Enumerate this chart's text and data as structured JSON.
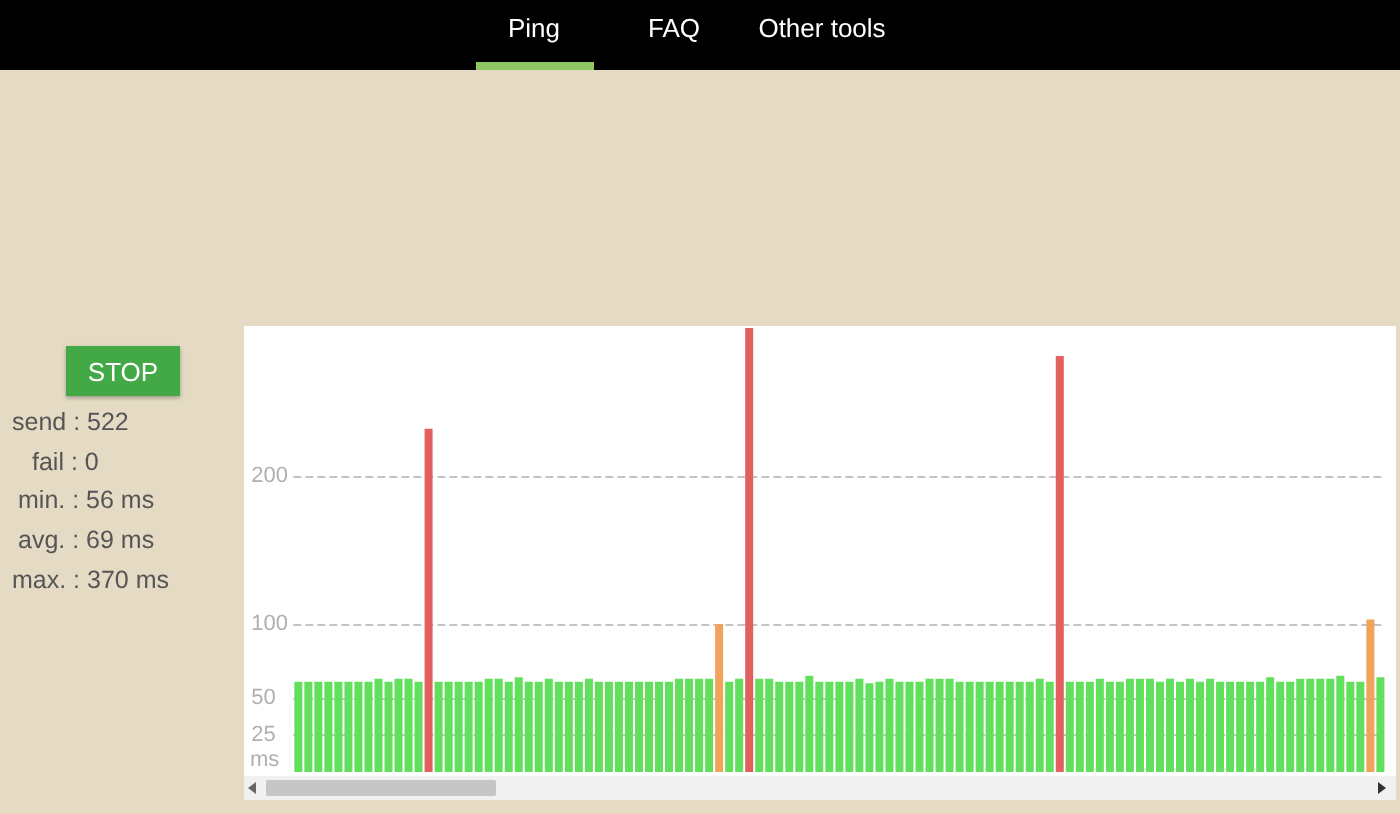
{
  "chart_data": {
    "type": "bar",
    "categories": [
      null,
      null,
      null,
      null,
      null,
      null,
      null,
      null,
      null,
      null,
      null,
      null,
      null,
      null,
      null,
      null,
      null,
      null,
      null,
      null,
      null,
      null,
      null,
      null,
      null,
      null,
      null,
      null,
      null,
      null,
      null,
      null,
      null,
      null,
      null,
      null,
      null,
      null,
      null,
      null,
      null,
      null,
      null,
      null,
      null,
      null,
      null,
      null,
      null,
      null,
      null,
      null,
      null,
      null,
      null,
      null,
      null,
      null,
      null,
      null,
      null,
      null,
      null,
      null,
      null,
      null,
      null,
      null,
      null,
      null,
      null,
      null,
      null,
      null,
      null,
      null,
      null,
      null,
      null,
      null,
      null,
      null,
      null,
      null,
      null,
      null,
      null,
      null,
      null,
      null,
      null,
      null,
      null,
      null,
      null,
      null,
      null,
      null,
      null,
      null,
      null,
      null,
      null,
      null,
      null,
      null,
      null,
      null,
      null
    ],
    "values": [
      61,
      61,
      61,
      61,
      61,
      61,
      61,
      61,
      63,
      61,
      63,
      63,
      61,
      232,
      61,
      61,
      61,
      61,
      61,
      63,
      63,
      61,
      64,
      61,
      61,
      63,
      61,
      61,
      61,
      63,
      61,
      61,
      61,
      61,
      61,
      61,
      61,
      61,
      63,
      63,
      63,
      63,
      100,
      61,
      63,
      300,
      63,
      63,
      61,
      61,
      61,
      65,
      61,
      61,
      61,
      61,
      63,
      60,
      61,
      63,
      61,
      61,
      61,
      63,
      63,
      63,
      61,
      61,
      61,
      61,
      61,
      61,
      61,
      61,
      63,
      61,
      281,
      61,
      61,
      61,
      63,
      61,
      61,
      63,
      63,
      63,
      61,
      63,
      61,
      63,
      61,
      63,
      61,
      61,
      61,
      61,
      61,
      64,
      61,
      61,
      63,
      63,
      63,
      63,
      65,
      61,
      61,
      103,
      64
    ],
    "colors": [
      "#62df5c",
      "#62df5c",
      "#62df5c",
      "#62df5c",
      "#62df5c",
      "#62df5c",
      "#62df5c",
      "#62df5c",
      "#62df5c",
      "#62df5c",
      "#62df5c",
      "#62df5c",
      "#62df5c",
      "#e3605f",
      "#62df5c",
      "#62df5c",
      "#62df5c",
      "#62df5c",
      "#62df5c",
      "#62df5c",
      "#62df5c",
      "#62df5c",
      "#62df5c",
      "#62df5c",
      "#62df5c",
      "#62df5c",
      "#62df5c",
      "#62df5c",
      "#62df5c",
      "#62df5c",
      "#62df5c",
      "#62df5c",
      "#62df5c",
      "#62df5c",
      "#62df5c",
      "#62df5c",
      "#62df5c",
      "#62df5c",
      "#62df5c",
      "#62df5c",
      "#62df5c",
      "#62df5c",
      "#efa35b",
      "#62df5c",
      "#62df5c",
      "#e3605f",
      "#62df5c",
      "#62df5c",
      "#62df5c",
      "#62df5c",
      "#62df5c",
      "#62df5c",
      "#62df5c",
      "#62df5c",
      "#62df5c",
      "#62df5c",
      "#62df5c",
      "#62df5c",
      "#62df5c",
      "#62df5c",
      "#62df5c",
      "#62df5c",
      "#62df5c",
      "#62df5c",
      "#62df5c",
      "#62df5c",
      "#62df5c",
      "#62df5c",
      "#62df5c",
      "#62df5c",
      "#62df5c",
      "#62df5c",
      "#62df5c",
      "#62df5c",
      "#62df5c",
      "#62df5c",
      "#e3605f",
      "#62df5c",
      "#62df5c",
      "#62df5c",
      "#62df5c",
      "#62df5c",
      "#62df5c",
      "#62df5c",
      "#62df5c",
      "#62df5c",
      "#62df5c",
      "#62df5c",
      "#62df5c",
      "#62df5c",
      "#62df5c",
      "#62df5c",
      "#62df5c",
      "#62df5c",
      "#62df5c",
      "#62df5c",
      "#62df5c",
      "#62df5c",
      "#62df5c",
      "#62df5c",
      "#62df5c",
      "#62df5c",
      "#62df5c",
      "#62df5c",
      "#62df5c",
      "#62df5c",
      "#62df5c",
      "#efa35b",
      "#62df5c"
    ],
    "ylabel": "ms",
    "ylim": [
      0,
      300
    ],
    "yticks": [
      25,
      50,
      100,
      200
    ],
    "grid": "y",
    "tick_labels": "y",
    "annotations": [
      "Ping",
      "FAQ",
      "Other tools",
      "STOP",
      "send : 522",
      "fail : 0",
      "min. : 56 ms",
      "avg. : 69 ms",
      "max. : 370 ms"
    ]
  }
}
